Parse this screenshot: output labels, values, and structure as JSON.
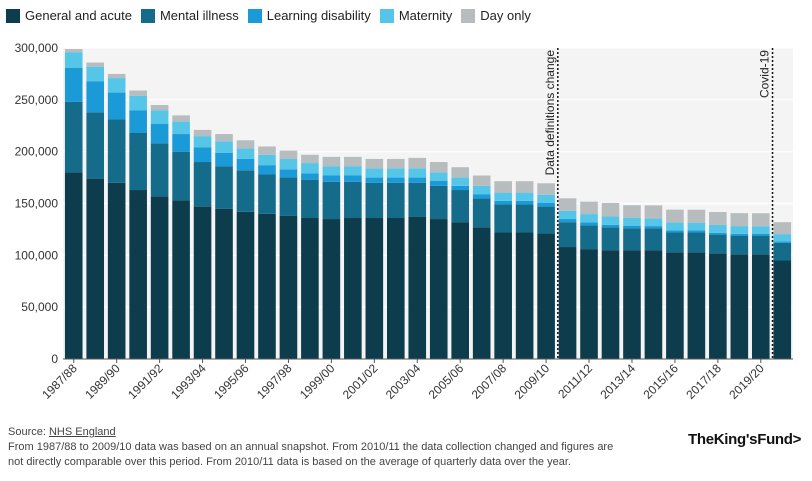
{
  "chart_data": {
    "type": "bar",
    "stacked": true,
    "categories": [
      "1987/88",
      "1988/89",
      "1989/90",
      "1990/91",
      "1991/92",
      "1992/93",
      "1993/94",
      "1994/95",
      "1995/96",
      "1996/97",
      "1997/98",
      "1998/99",
      "1999/00",
      "2000/01",
      "2001/02",
      "2002/03",
      "2003/04",
      "2004/05",
      "2005/06",
      "2006/07",
      "2007/08",
      "2008/09",
      "2009/10",
      "2010/11",
      "2011/12",
      "2012/13",
      "2013/14",
      "2014/15",
      "2015/16",
      "2016/17",
      "2017/18",
      "2018/19",
      "2019/20",
      "2020/21"
    ],
    "tick_labels": [
      "1987/88",
      "1989/90",
      "1991/92",
      "1993/94",
      "1995/96",
      "1997/98",
      "1999/00",
      "2001/02",
      "2003/04",
      "2005/06",
      "2007/08",
      "2009/10",
      "2011/12",
      "2013/14",
      "2015/16",
      "2017/18",
      "2019/20"
    ],
    "series": [
      {
        "name": "General and acute",
        "color": "#0d3d4d",
        "values": [
          180000,
          174000,
          170000,
          163000,
          157000,
          153000,
          147000,
          145000,
          142000,
          140000,
          138000,
          136000,
          135000,
          136000,
          136000,
          136000,
          137000,
          135000,
          132000,
          127000,
          122000,
          122000,
          121000,
          108000,
          106000,
          105000,
          105000,
          105000,
          103000,
          103000,
          102000,
          101000,
          101000,
          95000
        ]
      },
      {
        "name": "Mental illness",
        "color": "#156b8a",
        "values": [
          68000,
          64000,
          61000,
          55000,
          51000,
          47000,
          43000,
          41000,
          40000,
          38000,
          37000,
          37000,
          36000,
          35000,
          34000,
          34000,
          33000,
          32000,
          31000,
          28000,
          27000,
          27000,
          26000,
          24000,
          23000,
          22000,
          21000,
          21000,
          19000,
          19000,
          18000,
          18000,
          18000,
          17000
        ]
      },
      {
        "name": "Learning disability",
        "color": "#1a9ad6",
        "values": [
          33000,
          30000,
          26000,
          22000,
          19000,
          17000,
          14000,
          13000,
          11000,
          9000,
          8000,
          6000,
          6000,
          6000,
          5000,
          5000,
          5000,
          5000,
          4000,
          4000,
          3500,
          3500,
          3500,
          3000,
          2800,
          2500,
          2300,
          2200,
          2100,
          2000,
          1800,
          1700,
          1600,
          1500
        ]
      },
      {
        "name": "Maternity",
        "color": "#55c6e8",
        "values": [
          15000,
          14000,
          14000,
          14000,
          13000,
          12000,
          11000,
          11000,
          10000,
          10000,
          10000,
          10000,
          9000,
          9000,
          9000,
          9000,
          9000,
          8000,
          8000,
          8000,
          8000,
          8000,
          8000,
          8000,
          8000,
          8000,
          8000,
          7500,
          7500,
          7500,
          7500,
          7500,
          7500,
          7000
        ]
      },
      {
        "name": "Day only",
        "color": "#b7bcbf",
        "values": [
          3000,
          4000,
          4000,
          5000,
          5000,
          6000,
          6000,
          7000,
          8000,
          8000,
          8000,
          8000,
          9000,
          9000,
          9000,
          9000,
          10000,
          10000,
          10000,
          10000,
          11000,
          11000,
          11000,
          12000,
          12000,
          13000,
          12000,
          12500,
          12500,
          12500,
          12500,
          12500,
          12500,
          11500
        ]
      }
    ],
    "y_ticks": [
      0,
      50000,
      100000,
      150000,
      200000,
      250000,
      300000
    ],
    "y_tick_labels": [
      "0",
      "50,000",
      "100,000",
      "150,000",
      "200,000",
      "250,000",
      "300,000"
    ],
    "ylim": [
      0,
      300000
    ],
    "grid": true,
    "legend_position": "top-left",
    "annotations": [
      {
        "text": "Data definitions change",
        "after_category": "2009/10"
      },
      {
        "text": "Covid-19",
        "after_category": "2019/20"
      }
    ]
  },
  "footer": {
    "source_prefix": "Source: ",
    "source_link": "NHS England",
    "note_line1": "From 1987/88 to 2009/10 data was based on an annual snapshot. From 2010/11 the data collection changed and figures are",
    "note_line2": "not directly comparable over this period. From 2010/11 data is based on the average of quarterly data over the year."
  },
  "brand": "TheKing'sFund>"
}
